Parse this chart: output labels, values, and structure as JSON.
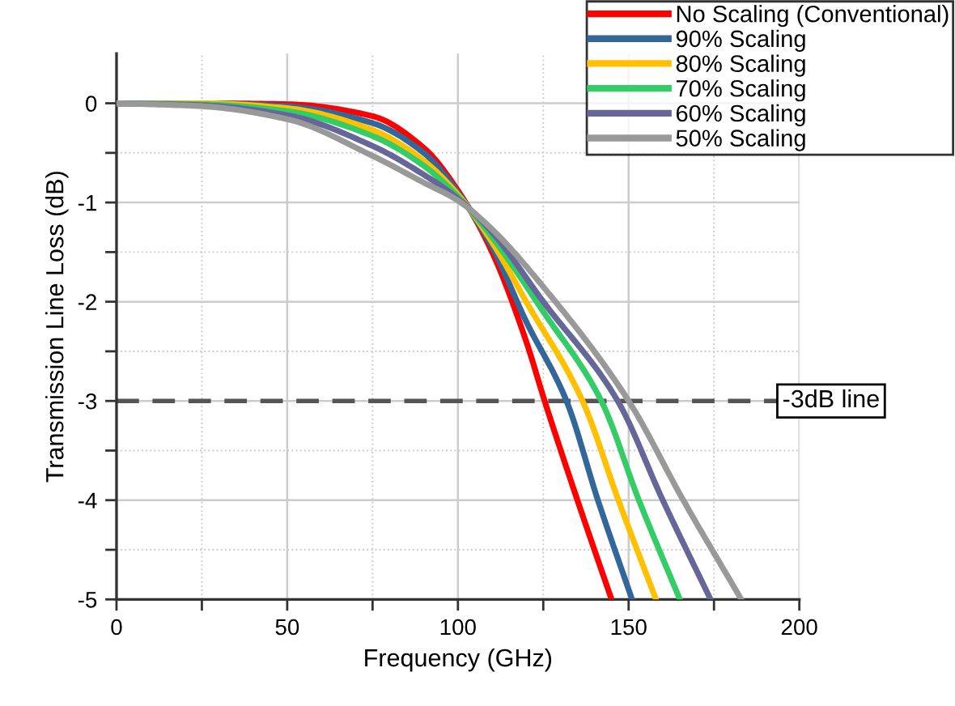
{
  "chart_data": {
    "type": "line",
    "xlabel": "Frequency (GHz)",
    "ylabel": "Transmission Line Loss (dB)",
    "xlim": [
      0,
      200
    ],
    "ylim": [
      -5,
      0.5
    ],
    "xticks": [
      0,
      {
        "value": 25,
        "label": null
      },
      50,
      {
        "value": 75,
        "label": null
      },
      100,
      {
        "value": 125,
        "label": null
      },
      150,
      {
        "value": 175,
        "label": null
      },
      200
    ],
    "yticks": [
      {
        "value": -5,
        "label": "-5"
      },
      {
        "value": -4.5,
        "label": null
      },
      {
        "value": -4,
        "label": "-4"
      },
      {
        "value": -3.5,
        "label": null
      },
      {
        "value": -3,
        "label": "-3"
      },
      {
        "value": -2.5,
        "label": null
      },
      {
        "value": -2,
        "label": "-2"
      },
      {
        "value": -1.5,
        "label": null
      },
      {
        "value": -1,
        "label": "-1"
      },
      {
        "value": -0.5,
        "label": null
      },
      0
    ],
    "grid": true,
    "legend": "top right",
    "line_style": "solid",
    "marker": "none",
    "ref_lines": [
      {
        "axis": "y",
        "value": -3,
        "label": "-3dB line",
        "color": "#555555",
        "line_style": "dashed"
      }
    ],
    "series": [
      {
        "name": "No Scaling (Conventional)",
        "color": "#ff0000",
        "x": [
          0,
          25,
          50,
          75,
          90,
          100,
          110,
          120,
          125.4,
          135,
          145
        ],
        "values": [
          0,
          0,
          -0.01,
          -0.13,
          -0.45,
          -0.88,
          -1.5,
          -2.4,
          -3,
          -4,
          -5
        ]
      },
      {
        "name": "90% Scaling",
        "color": "#336699",
        "x": [
          0,
          25,
          50,
          75,
          90,
          100,
          110,
          120,
          131.8,
          141,
          151
        ],
        "values": [
          0,
          0,
          -0.03,
          -0.2,
          -0.5,
          -0.9,
          -1.45,
          -2.2,
          -3,
          -4,
          -5
        ]
      },
      {
        "name": "80% Scaling",
        "color": "#ffc000",
        "x": [
          0,
          25,
          50,
          75,
          90,
          100,
          110,
          120,
          136.5,
          147,
          158
        ],
        "values": [
          0,
          0,
          -0.05,
          -0.27,
          -0.58,
          -0.92,
          -1.4,
          -2.0,
          -3,
          -4,
          -5
        ]
      },
      {
        "name": "70% Scaling",
        "color": "#33cc66",
        "x": [
          0,
          25,
          50,
          75,
          90,
          100,
          110,
          125,
          142,
          153,
          165
        ],
        "values": [
          0,
          -0.01,
          -0.08,
          -0.33,
          -0.63,
          -0.94,
          -1.35,
          -2.1,
          -3,
          -4,
          -5
        ]
      },
      {
        "name": "60% Scaling",
        "color": "#666699",
        "x": [
          0,
          25,
          50,
          75,
          90,
          100,
          110,
          125,
          146.8,
          160,
          174
        ],
        "values": [
          0,
          -0.02,
          -0.12,
          -0.43,
          -0.72,
          -0.96,
          -1.3,
          -2.0,
          -3,
          -4,
          -5
        ]
      },
      {
        "name": "50% Scaling",
        "color": "#999999",
        "x": [
          0,
          25,
          50,
          75,
          90,
          100,
          110,
          125,
          150,
          166,
          183
        ],
        "values": [
          0,
          -0.03,
          -0.16,
          -0.53,
          -0.8,
          -0.98,
          -1.27,
          -1.85,
          -3,
          -4,
          -5
        ]
      }
    ]
  }
}
